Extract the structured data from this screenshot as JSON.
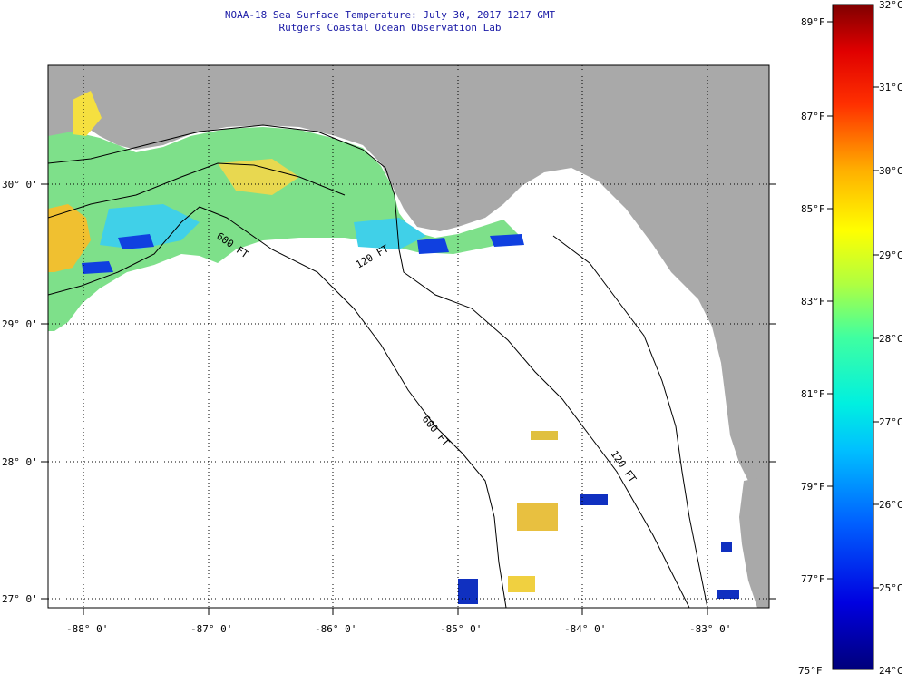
{
  "title": "NOAA-18 Sea Surface Temperature:  July 30, 2017 1217 GMT",
  "subtitle": "Rutgers Coastal Ocean Observation Lab",
  "lat_labels": [
    "30° 0'",
    "29° 0'",
    "28° 0'",
    "27° 0'"
  ],
  "lon_labels": [
    "-88° 0'",
    "-87° 0'",
    "-86° 0'",
    "-85° 0'",
    "-84° 0'",
    "-83° 0'"
  ],
  "contour_labels": [
    "600 FT",
    "120 FT",
    "600 FT",
    "120 FT"
  ],
  "colorbar": {
    "celsius": [
      "32°C",
      "31°C",
      "30°C",
      "29°C",
      "28°C",
      "27°C",
      "26°C",
      "25°C",
      "24°C"
    ],
    "fahrenheit": [
      "89°F",
      "87°F",
      "85°F",
      "83°F",
      "81°F",
      "79°F",
      "77°F",
      "75°F"
    ]
  },
  "colors": {
    "land": "#a9a9a9",
    "ocean": "#ffffff",
    "title": "#1a1aa6"
  }
}
